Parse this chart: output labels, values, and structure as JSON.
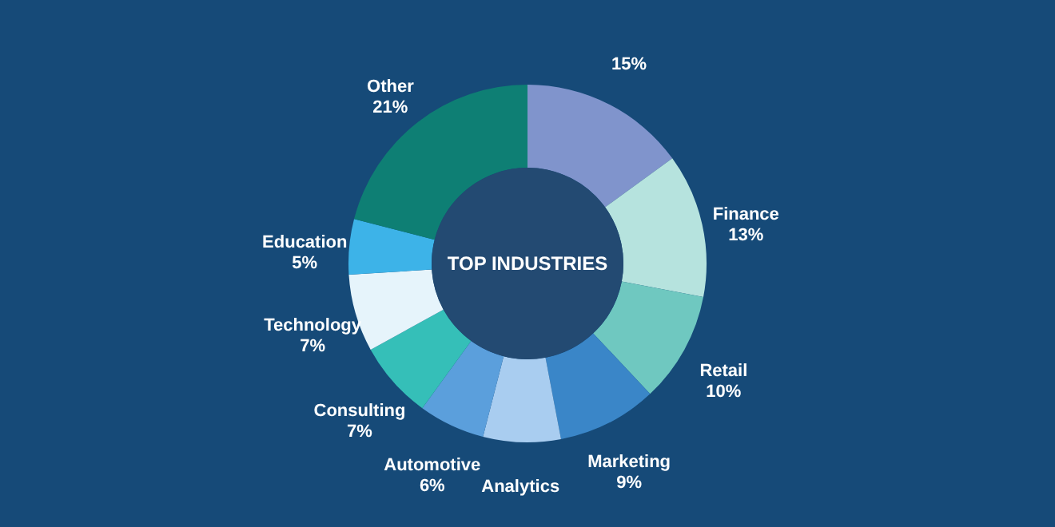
{
  "chart_data": {
    "type": "donut",
    "title": "TOP INDUSTRIES",
    "categories": [
      null,
      "Finance",
      "Retail",
      "Marketing",
      "Analytics",
      "Automotive",
      "Consulting",
      "Technology",
      "Education",
      "Other"
    ],
    "values": [
      15,
      13,
      10,
      9,
      7,
      6,
      7,
      7,
      5,
      21
    ],
    "value_labels": [
      "15%",
      "13%",
      "10%",
      "9%",
      null,
      "6%",
      "7%",
      "7%",
      "5%",
      "21%"
    ],
    "colors": [
      "#8094cc",
      "#b6e3de",
      "#6fc8c0",
      "#3a86c8",
      "#a9cdf0",
      "#5b9fdc",
      "#35bfb8",
      "#e6f4fb",
      "#3db3e8",
      "#0e7f74"
    ],
    "legend": false
  }
}
